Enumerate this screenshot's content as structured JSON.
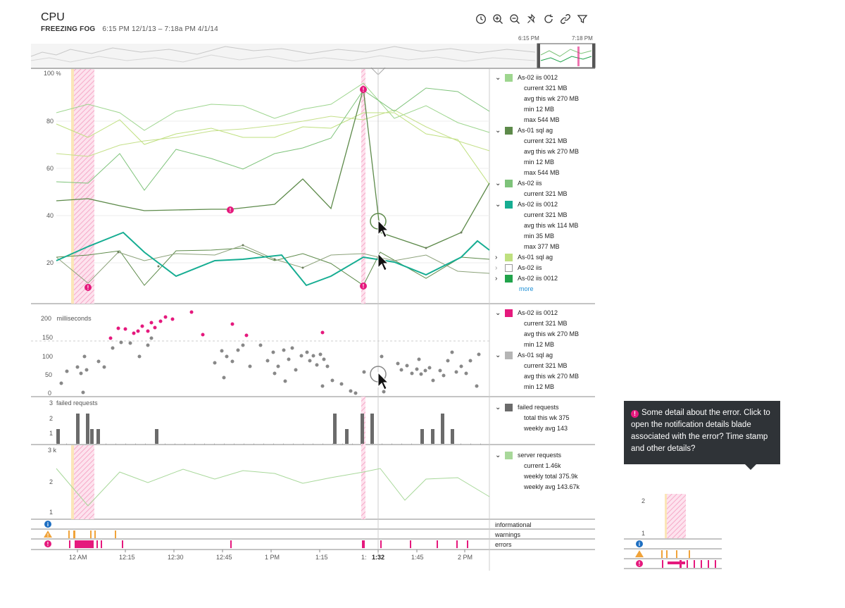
{
  "header": {
    "title": "CPU",
    "location": "FREEZING FOG",
    "range": "6:15 PM 12/1/13 – 7:18a PM 4/1/14"
  },
  "toolbar": [
    {
      "name": "clock-icon"
    },
    {
      "name": "zoom-in-icon"
    },
    {
      "name": "zoom-out-icon"
    },
    {
      "name": "pin-icon"
    },
    {
      "name": "refresh-icon"
    },
    {
      "name": "link-icon"
    },
    {
      "name": "filter-icon"
    }
  ],
  "overview": {
    "start_label": "6:15 PM",
    "end_label": "7:18 PM"
  },
  "cpu": {
    "unit": "%",
    "y_ticks": [
      "100",
      "80",
      "60",
      "40",
      "20"
    ],
    "legend": [
      {
        "name": "As-02 iis 0012",
        "color": "#9ed68f",
        "expanded": true,
        "details": [
          "current 321 MB",
          "avg this wk 270 MB",
          "min 12 MB",
          "max 544 MB"
        ]
      },
      {
        "name": "As-01 sql ag",
        "color": "#5d8a4a",
        "expanded": true,
        "details": [
          "current 321 MB",
          "avg this wk 270 MB",
          "min 12 MB",
          "max 544 MB"
        ]
      },
      {
        "name": "As-02 iis",
        "color": "#7ec37a",
        "expanded": true,
        "details": [
          "current 321 MB"
        ]
      },
      {
        "name": "As-02 iis 0012",
        "color": "#16ad92",
        "expanded": true,
        "details": [
          "current 321 MB",
          "avg this wk 114 MB",
          "min 35 MB",
          "max 377 MB"
        ]
      },
      {
        "name": "As-01 sql ag",
        "color": "#bfe07f",
        "expanded": false,
        "details": []
      },
      {
        "name": "As-02 iis",
        "color": "#ffffff",
        "expanded": false,
        "details": []
      },
      {
        "name": "As-02 iis 0012",
        "color": "#21a34b",
        "expanded": false,
        "details": []
      }
    ],
    "more": "more"
  },
  "latency": {
    "unit": "milliseconds",
    "y_ticks": [
      "200",
      "150",
      "100",
      "50",
      "0"
    ],
    "legend": [
      {
        "name": "As-02 iis 0012",
        "color": "#e5197d",
        "details": [
          "current 321 MB",
          "avg this wk 270 MB",
          "min 12 MB"
        ]
      },
      {
        "name": "As-01 sql ag",
        "color": "#b5b5b5",
        "details": [
          "current 321 MB",
          "avg this wk 270 MB",
          "min 12 MB"
        ]
      }
    ]
  },
  "failed": {
    "unit": "failed requests",
    "y_ticks": [
      "3",
      "2",
      "1"
    ],
    "legend": {
      "name": "failed requests",
      "color": "#6b6b6b",
      "details": [
        "total this wk 375",
        "weekly avg 143"
      ]
    }
  },
  "server": {
    "unit": "k",
    "y_ticks": [
      "3",
      "2",
      "1"
    ],
    "legend": {
      "name": "server requests",
      "color": "#a8d89a",
      "details": [
        "current 1.46k",
        "weekly total 375.9k",
        "weekly avg 143.67k"
      ]
    }
  },
  "events": {
    "labels": [
      "informational",
      "warnings",
      "errors"
    ]
  },
  "time_axis": [
    "12 AM",
    "12:15",
    "12:30",
    "12:45",
    "1 PM",
    "1:15",
    "1:",
    "1:32",
    "1:45",
    "2 PM"
  ],
  "tooltip": {
    "text": "Some detail about the error. Click to open the notification details blade associated with the error? Time stamp and other details?"
  },
  "mini": {
    "y_ticks": [
      "2",
      "1"
    ]
  }
}
